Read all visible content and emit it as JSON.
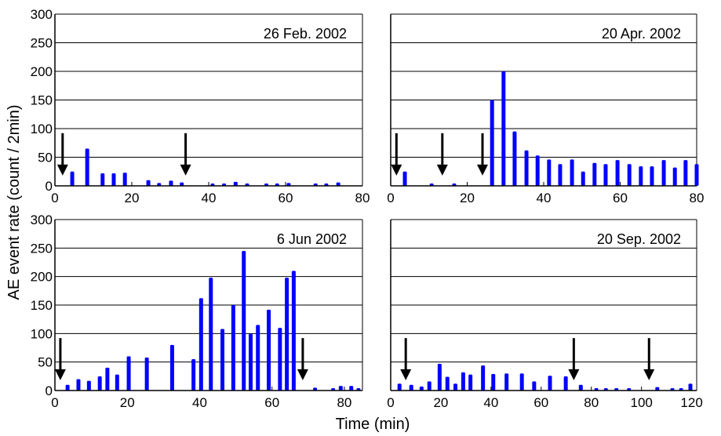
{
  "chart_data": {
    "type": "bar",
    "ylabel": "AE event rate (count / 2min)",
    "xlabel": "Time (min)",
    "ylim": [
      0,
      300
    ],
    "yticks": [
      0,
      50,
      100,
      150,
      200,
      250,
      300
    ],
    "grid": true,
    "bar_color": "#0000ff",
    "panels": [
      {
        "title": "26 Feb. 2002",
        "xlim": [
          0,
          80
        ],
        "xticks": [
          0,
          20,
          40,
          60,
          80
        ],
        "arrows": [
          2,
          34
        ],
        "x": [
          4.5,
          8.4,
          12.4,
          15.3,
          18.2,
          24.3,
          27.1,
          30.2,
          33,
          41,
          44,
          47,
          50,
          55,
          57.8,
          60.8,
          67.8,
          70.6,
          73.7
        ],
        "values": [
          25,
          65,
          22,
          22,
          23,
          10,
          5,
          9,
          6,
          2,
          3,
          7,
          3,
          4,
          3,
          5,
          4,
          4,
          6
        ]
      },
      {
        "title": "20 Apr. 2002",
        "xlim": [
          0,
          80
        ],
        "xticks": [
          0,
          20,
          40,
          60,
          80
        ],
        "arrows": [
          1.5,
          13.5,
          24
        ],
        "x": [
          3.7,
          10.7,
          16.6,
          26.5,
          29.5,
          32.4,
          35.5,
          38.4,
          41.4,
          44.3,
          47.4,
          50.3,
          53.3,
          56.2,
          59.3,
          62.4,
          65.4,
          68.3,
          71.4,
          74.3,
          77.1,
          80.0
        ],
        "values": [
          25,
          3,
          3,
          150,
          200,
          95,
          62,
          53,
          46,
          38,
          46,
          25,
          40,
          38,
          45,
          38,
          34,
          34,
          45,
          32,
          45,
          38
        ]
      },
      {
        "title": "6 Jun 2002",
        "xlim": [
          0,
          85
        ],
        "xticks": [
          0,
          20,
          40,
          60,
          80
        ],
        "arrows": [
          1.5,
          68.5
        ],
        "x": [
          3.5,
          6.5,
          9.4,
          12.4,
          14.5,
          17.2,
          20.4,
          25.4,
          32.4,
          38.3,
          40.4,
          43.1,
          46.3,
          49.3,
          52.2,
          54.1,
          56.1,
          59.1,
          62.2,
          64.1,
          66,
          71.9,
          76.9,
          79,
          81.9,
          83.9
        ],
        "values": [
          10,
          20,
          17,
          25,
          40,
          28,
          60,
          58,
          80,
          55,
          162,
          198,
          108,
          150,
          245,
          100,
          115,
          142,
          110,
          198,
          210,
          5,
          3,
          8,
          8,
          4
        ]
      },
      {
        "title": "20 Sep. 2002",
        "xlim": [
          0,
          122
        ],
        "xticks": [
          0,
          20,
          40,
          60,
          80,
          100,
          120
        ],
        "arrows": [
          6,
          73,
          103
        ],
        "x": [
          3.5,
          8.2,
          12.3,
          15.4,
          19.5,
          22.6,
          25.8,
          28.9,
          31.8,
          36.8,
          40.9,
          46.2,
          52.3,
          57.2,
          63.5,
          69.8,
          75.8,
          82,
          85.8,
          90,
          95,
          106.3,
          112.3,
          115.8,
          119.5
        ],
        "values": [
          12,
          10,
          7,
          16,
          47,
          24,
          12,
          32,
          28,
          44,
          29,
          30,
          30,
          16,
          26,
          25,
          10,
          3,
          4,
          3,
          4,
          6,
          4,
          4,
          12
        ]
      }
    ]
  }
}
